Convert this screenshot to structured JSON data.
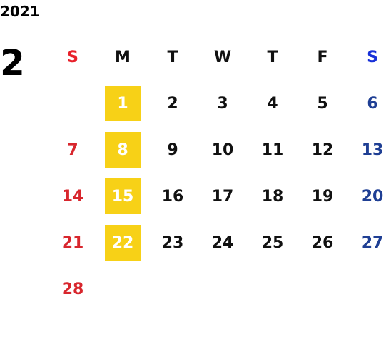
{
  "year": "2021",
  "month": "2",
  "highlight_color": "#f7d117",
  "highlight_text_color": "#ffffff",
  "weekdays": [
    {
      "label": "S",
      "header_color": "#e8202a",
      "day_color": "#d8262d",
      "highlight": false
    },
    {
      "label": "M",
      "header_color": "#111111",
      "day_color": "#111111",
      "highlight": true
    },
    {
      "label": "T",
      "header_color": "#111111",
      "day_color": "#111111",
      "highlight": false
    },
    {
      "label": "W",
      "header_color": "#111111",
      "day_color": "#111111",
      "highlight": false
    },
    {
      "label": "T",
      "header_color": "#111111",
      "day_color": "#111111",
      "highlight": false
    },
    {
      "label": "F",
      "header_color": "#111111",
      "day_color": "#111111",
      "highlight": false
    },
    {
      "label": "S",
      "header_color": "#1730d8",
      "day_color": "#1f3f94",
      "highlight": false
    }
  ],
  "weeks": [
    [
      null,
      1,
      2,
      3,
      4,
      5,
      6
    ],
    [
      7,
      8,
      9,
      10,
      11,
      12,
      13
    ],
    [
      14,
      15,
      16,
      17,
      18,
      19,
      20
    ],
    [
      21,
      22,
      23,
      24,
      25,
      26,
      27
    ],
    [
      28,
      null,
      null,
      null,
      null,
      null,
      null
    ]
  ]
}
